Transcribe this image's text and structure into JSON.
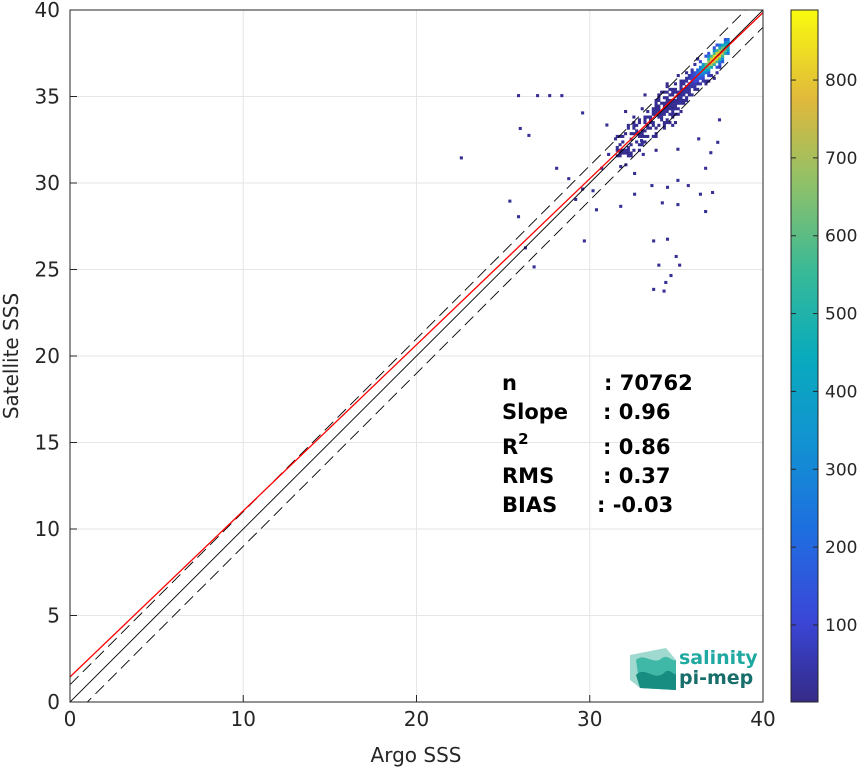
{
  "chart_data": {
    "type": "heatmap",
    "title": "",
    "xlabel": "Argo SSS",
    "ylabel": "Satellite SSS",
    "xlim": [
      0,
      40
    ],
    "ylim": [
      0,
      40
    ],
    "xticks": [
      0,
      10,
      20,
      30,
      40
    ],
    "yticks": [
      0,
      5,
      10,
      15,
      20,
      25,
      30,
      35,
      40
    ],
    "grid": true,
    "colorbar": {
      "colormap": "parula",
      "range": [
        1,
        890
      ],
      "ticks": [
        100,
        200,
        300,
        400,
        500,
        600,
        700,
        800
      ]
    },
    "density_core": {
      "x_range": [
        31.5,
        38
      ],
      "y_range": [
        31.5,
        38.3
      ],
      "peak_count": 890,
      "peak_at": [
        37.2,
        37.2
      ]
    },
    "outliers": [
      [
        22.5,
        31.4
      ],
      [
        25.3,
        28.9
      ],
      [
        25.8,
        28.0
      ],
      [
        26.2,
        26.2
      ],
      [
        26.7,
        25.1
      ],
      [
        25.8,
        35.0
      ],
      [
        26.9,
        35.0
      ],
      [
        27.6,
        35.0
      ],
      [
        28.3,
        35.0
      ],
      [
        25.9,
        33.1
      ],
      [
        26.4,
        32.7
      ],
      [
        28.0,
        30.8
      ],
      [
        28.7,
        30.2
      ],
      [
        29.5,
        29.6
      ],
      [
        29.1,
        29.0
      ],
      [
        30.1,
        29.5
      ],
      [
        30.3,
        28.4
      ],
      [
        29.6,
        26.6
      ],
      [
        29.5,
        34.0
      ],
      [
        30.6,
        30.8
      ],
      [
        31.0,
        31.6
      ],
      [
        31.7,
        28.6
      ],
      [
        32.5,
        29.3
      ],
      [
        33.5,
        29.8
      ],
      [
        34.1,
        28.8
      ],
      [
        34.4,
        29.7
      ],
      [
        35.0,
        28.7
      ],
      [
        35.0,
        30.1
      ],
      [
        35.6,
        29.8
      ],
      [
        36.3,
        29.3
      ],
      [
        36.6,
        28.3
      ],
      [
        37.0,
        29.4
      ],
      [
        33.6,
        26.6
      ],
      [
        33.9,
        25.2
      ],
      [
        34.4,
        26.7
      ],
      [
        34.6,
        24.6
      ],
      [
        34.9,
        25.7
      ],
      [
        35.1,
        25.2
      ],
      [
        34.2,
        23.7
      ],
      [
        33.6,
        23.8
      ],
      [
        34.3,
        24.2
      ],
      [
        32.0,
        31.8
      ],
      [
        32.5,
        30.5
      ],
      [
        31.7,
        30.9
      ],
      [
        32.9,
        32.4
      ],
      [
        36.9,
        31.7
      ],
      [
        37.3,
        32.3
      ],
      [
        36.6,
        30.8
      ],
      [
        31.4,
        32.5
      ],
      [
        30.9,
        33.3
      ],
      [
        32.0,
        31.0
      ],
      [
        33.0,
        31.6
      ],
      [
        35.0,
        31.9
      ],
      [
        36.2,
        32.5
      ],
      [
        37.4,
        33.6
      ]
    ],
    "lines": [
      {
        "kind": "identity",
        "style": "solid",
        "color": "#000000",
        "offset": 0
      },
      {
        "kind": "identity upper bound",
        "style": "dashed",
        "color": "#000000",
        "offset": 1
      },
      {
        "kind": "identity lower bound",
        "style": "dashed",
        "color": "#000000",
        "offset": -1
      },
      {
        "kind": "regression fit",
        "style": "solid",
        "color": "#ff0000",
        "slope": 0.96,
        "intercept": 1.45
      }
    ],
    "stats": {
      "n_label": "n",
      "n_value": ": 70762",
      "slope_label": "Slope",
      "slope_value": ": 0.96",
      "r2_label": "R",
      "r2_sup": "2",
      "r2_value": ": 0.86",
      "rms_label": "RMS",
      "rms_value": ": 0.37",
      "bias_label": "BIAS",
      "bias_value": ": -0.03"
    }
  },
  "logo": {
    "line1": "salinity",
    "line2": "pi-mep",
    "color": "#1fa9a0",
    "color_dark": "#176e6a"
  }
}
